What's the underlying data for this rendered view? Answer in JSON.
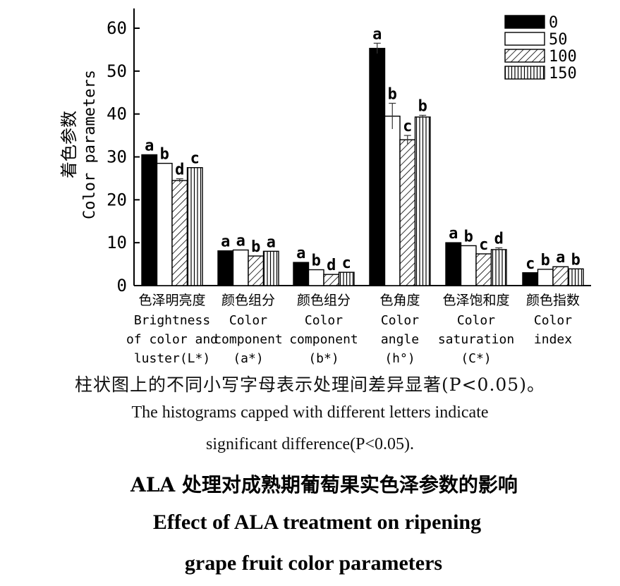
{
  "chart_data": {
    "type": "bar",
    "ylabel_cn": "着色参数",
    "ylabel_en": "Color parameters",
    "ylim": [
      0,
      65
    ],
    "yticks": [
      0,
      10,
      20,
      30,
      40,
      50,
      60
    ],
    "legend_position": "top-right",
    "categories": [
      {
        "cn": "色泽明亮度",
        "en": [
          "Brightness",
          "of color and",
          "luster(L*)"
        ]
      },
      {
        "cn": "颜色组分",
        "en": [
          "Color",
          "component",
          "(a*)"
        ]
      },
      {
        "cn": "颜色组分",
        "en": [
          "Color",
          "component",
          "(b*)"
        ]
      },
      {
        "cn": "色角度",
        "en": [
          "Color",
          "angle",
          "(h°)"
        ]
      },
      {
        "cn": "色泽饱和度",
        "en": [
          "Color",
          "saturation",
          "(C*)"
        ]
      },
      {
        "cn": "颜色指数",
        "en": [
          "Color",
          "index"
        ]
      }
    ],
    "series": [
      {
        "name": "0",
        "pattern": "solid",
        "values": [
          30.5,
          8.1,
          5.4,
          55.3,
          10.0,
          3.0
        ],
        "errors": [
          0,
          0,
          0,
          1.2,
          0,
          0
        ],
        "letters": [
          "a",
          "a",
          "a",
          "a",
          "a",
          "c"
        ]
      },
      {
        "name": "50",
        "pattern": "white",
        "values": [
          28.5,
          8.3,
          3.7,
          39.5,
          9.3,
          3.8
        ],
        "errors": [
          0,
          0,
          0,
          3.0,
          0,
          0
        ],
        "letters": [
          "b",
          "a",
          "b",
          "b",
          "b",
          "b"
        ]
      },
      {
        "name": "100",
        "pattern": "diagonal",
        "values": [
          24.5,
          6.9,
          2.6,
          34.0,
          7.4,
          4.4
        ],
        "errors": [
          0.4,
          0,
          0,
          1.0,
          0,
          0
        ],
        "letters": [
          "d",
          "b",
          "d",
          "c",
          "c",
          "a"
        ]
      },
      {
        "name": "150",
        "pattern": "vertical",
        "values": [
          27.5,
          8.0,
          3.1,
          39.3,
          8.4,
          3.9
        ],
        "errors": [
          0,
          0,
          0,
          0.4,
          0.4,
          0
        ],
        "letters": [
          "c",
          "a",
          "c",
          "b",
          "d",
          "b"
        ]
      }
    ]
  },
  "caption": {
    "cn": "柱状图上的不同小写字母表示处理间差异显著(P<0.05)。",
    "en_line1": "The histograms capped with different letters indicate",
    "en_line2": "significant difference(P<0.05)."
  },
  "title": {
    "cn": "ALA 处理对成熟期葡萄果实色泽参数的影响",
    "en_line1": "Effect of ALA treatment on ripening",
    "en_line2": "grape fruit color parameters"
  }
}
